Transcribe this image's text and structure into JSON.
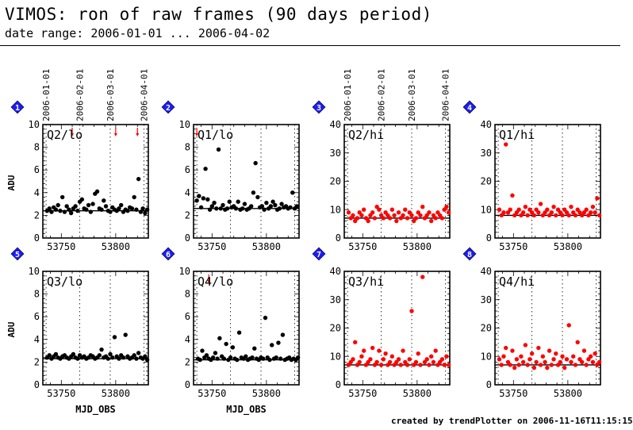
{
  "title": "VIMOS: ron of raw frames (90 days period)",
  "subtitle": "date range: 2006-01-01 ... 2006-04-02",
  "footer": "created by trendPlotter on 2006-11-16T11:15:15",
  "colors": {
    "lo": "#000000",
    "hi": "#ff0000",
    "badge": "#1c1cff",
    "background": "#ffffff"
  },
  "chart_data": {
    "type": "scatter",
    "shared_x_axis": {
      "label": "MJD_OBS",
      "ticks": [
        53750,
        53800
      ],
      "xlim": [
        53733,
        53830
      ],
      "date_markers": [
        {
          "label": "2006-01-01",
          "mjd": 53736
        },
        {
          "label": "2006-02-01",
          "mjd": 53767
        },
        {
          "label": "2006-03-01",
          "mjd": 53795
        },
        {
          "label": "2006-04-01",
          "mjd": 53826
        }
      ]
    },
    "ylabel": "ADU",
    "grid": "dotted vertical lines at month starts",
    "panels": [
      {
        "number": "1",
        "label": "Q2/lo",
        "color": "lo",
        "ylim": [
          0,
          10
        ],
        "yticks": [
          0,
          2,
          4,
          6,
          8,
          10
        ],
        "reference": 2.4,
        "x": [
          53737,
          53739,
          53741,
          53743,
          53745,
          53747,
          53749,
          53751,
          53753,
          53755,
          53757,
          53759,
          53761,
          53763,
          53765,
          53767,
          53769,
          53771,
          53773,
          53775,
          53777,
          53779,
          53781,
          53783,
          53785,
          53787,
          53789,
          53791,
          53793,
          53795,
          53797,
          53799,
          53801,
          53803,
          53805,
          53807,
          53809,
          53811,
          53813,
          53815,
          53817,
          53819,
          53821,
          53823,
          53825,
          53827,
          53829
        ],
        "y": [
          2.4,
          2.6,
          2.3,
          2.7,
          2.5,
          2.9,
          2.4,
          3.6,
          2.3,
          2.8,
          2.5,
          2.2,
          2.6,
          2.8,
          2.4,
          3.2,
          3.4,
          2.6,
          2.5,
          2.9,
          2.3,
          3.0,
          3.9,
          4.1,
          2.6,
          2.5,
          3.3,
          2.8,
          2.4,
          2.3,
          2.7,
          2.5,
          2.4,
          2.6,
          2.9,
          2.3,
          2.5,
          2.4,
          2.7,
          2.6,
          3.6,
          2.5,
          5.2,
          2.3,
          2.6,
          2.2,
          2.5
        ],
        "offscale_arrows": [
          53760,
          53800,
          53820
        ]
      },
      {
        "number": "2",
        "label": "Q1/lo",
        "color": "lo",
        "ylim": [
          0,
          10
        ],
        "yticks": [
          0,
          2,
          4,
          6,
          8,
          10
        ],
        "reference": 2.6,
        "x": [
          53736,
          53738,
          53740,
          53742,
          53744,
          53746,
          53748,
          53750,
          53752,
          53754,
          53756,
          53758,
          53760,
          53762,
          53764,
          53766,
          53768,
          53770,
          53772,
          53774,
          53776,
          53778,
          53780,
          53782,
          53784,
          53786,
          53788,
          53790,
          53792,
          53794,
          53796,
          53798,
          53800,
          53802,
          53804,
          53806,
          53808,
          53810,
          53812,
          53814,
          53816,
          53818,
          53820,
          53822,
          53824,
          53826,
          53828
        ],
        "y": [
          3.3,
          3.7,
          2.7,
          3.5,
          6.1,
          3.4,
          2.5,
          2.8,
          3.1,
          2.6,
          7.8,
          2.6,
          2.9,
          2.5,
          2.6,
          3.2,
          2.7,
          2.8,
          2.6,
          3.2,
          2.5,
          2.6,
          3.0,
          2.5,
          2.6,
          2.8,
          4.0,
          6.6,
          3.6,
          2.7,
          2.8,
          2.5,
          3.1,
          2.6,
          2.8,
          3.2,
          2.9,
          2.5,
          2.6,
          3.0,
          2.7,
          2.8,
          2.6,
          2.7,
          4.0,
          2.6,
          2.8
        ],
        "offscale_arrows": [
          53736
        ]
      },
      {
        "number": "3",
        "label": "Q2/hi",
        "color": "hi",
        "ylim": [
          0,
          40
        ],
        "yticks": [
          0,
          10,
          20,
          30,
          40
        ],
        "reference": 7,
        "x": [
          53737,
          53739,
          53741,
          53743,
          53745,
          53747,
          53749,
          53751,
          53753,
          53755,
          53757,
          53759,
          53761,
          53763,
          53765,
          53767,
          53769,
          53771,
          53773,
          53775,
          53777,
          53779,
          53781,
          53783,
          53785,
          53787,
          53789,
          53791,
          53793,
          53795,
          53797,
          53799,
          53801,
          53803,
          53805,
          53807,
          53809,
          53811,
          53813,
          53815,
          53817,
          53819,
          53821,
          53823,
          53825,
          53827,
          53829
        ],
        "y": [
          9,
          7,
          8,
          6,
          7,
          9,
          8,
          10,
          7,
          6,
          8,
          9,
          7,
          11,
          10,
          8,
          7,
          9,
          8,
          7,
          10,
          8,
          6,
          9,
          7,
          8,
          10,
          7,
          9,
          8,
          6,
          7,
          9,
          8,
          11,
          7,
          8,
          9,
          6,
          8,
          7,
          9,
          8,
          7,
          10,
          11,
          9
        ],
        "offscale_arrows": []
      },
      {
        "number": "4",
        "label": "Q1/hi",
        "color": "hi",
        "ylim": [
          0,
          40
        ],
        "yticks": [
          0,
          10,
          20,
          30,
          40
        ],
        "reference": 8,
        "x": [
          53737,
          53739,
          53741,
          53743,
          53745,
          53747,
          53749,
          53751,
          53753,
          53755,
          53757,
          53759,
          53761,
          53763,
          53765,
          53767,
          53769,
          53771,
          53773,
          53775,
          53777,
          53779,
          53781,
          53783,
          53785,
          53787,
          53789,
          53791,
          53793,
          53795,
          53797,
          53799,
          53801,
          53803,
          53805,
          53807,
          53809,
          53811,
          53813,
          53815,
          53817,
          53819,
          53821,
          53823,
          53825,
          53827,
          53829
        ],
        "y": [
          10,
          8,
          9,
          33,
          9,
          10,
          15,
          8,
          9,
          10,
          8,
          9,
          11,
          8,
          10,
          9,
          8,
          10,
          9,
          12,
          8,
          9,
          10,
          8,
          9,
          11,
          8,
          10,
          9,
          8,
          10,
          9,
          8,
          11,
          9,
          8,
          10,
          9,
          8,
          9,
          10,
          8,
          9,
          11,
          9,
          14,
          8
        ],
        "offscale_arrows": []
      },
      {
        "number": "5",
        "label": "Q3/lo",
        "color": "lo",
        "ylim": [
          0,
          10
        ],
        "yticks": [
          0,
          2,
          4,
          6,
          8,
          10
        ],
        "reference": 2.3,
        "x": [
          53737,
          53739,
          53741,
          53743,
          53745,
          53747,
          53749,
          53751,
          53753,
          53755,
          53757,
          53759,
          53761,
          53763,
          53765,
          53767,
          53769,
          53771,
          53773,
          53775,
          53777,
          53779,
          53781,
          53783,
          53785,
          53787,
          53789,
          53791,
          53793,
          53795,
          53797,
          53799,
          53801,
          53803,
          53805,
          53807,
          53809,
          53811,
          53813,
          53815,
          53817,
          53819,
          53821,
          53823,
          53825,
          53827,
          53829
        ],
        "y": [
          2.4,
          2.6,
          2.3,
          2.5,
          2.7,
          2.4,
          2.3,
          2.5,
          2.6,
          2.4,
          2.3,
          2.5,
          2.7,
          2.4,
          2.3,
          2.6,
          2.4,
          2.5,
          2.3,
          2.4,
          2.6,
          2.5,
          2.3,
          2.4,
          2.6,
          3.1,
          2.4,
          2.5,
          2.3,
          2.7,
          2.4,
          4.2,
          2.5,
          2.3,
          2.6,
          2.4,
          4.4,
          2.5,
          2.3,
          2.4,
          2.6,
          2.3,
          2.8,
          2.4,
          2.3,
          2.5,
          2.2
        ],
        "offscale_arrows": []
      },
      {
        "number": "6",
        "label": "Q4/lo",
        "color": "lo",
        "ylim": [
          0,
          10
        ],
        "yticks": [
          0,
          2,
          4,
          6,
          8,
          10
        ],
        "reference": 2.2,
        "x": [
          53737,
          53739,
          53741,
          53743,
          53745,
          53747,
          53749,
          53751,
          53753,
          53755,
          53757,
          53759,
          53761,
          53763,
          53765,
          53767,
          53769,
          53771,
          53773,
          53775,
          53777,
          53779,
          53781,
          53783,
          53785,
          53787,
          53789,
          53791,
          53793,
          53795,
          53797,
          53799,
          53801,
          53803,
          53805,
          53807,
          53809,
          53811,
          53813,
          53815,
          53817,
          53819,
          53821,
          53823,
          53825,
          53827,
          53829
        ],
        "y": [
          2.3,
          2.2,
          3.0,
          2.4,
          2.6,
          2.3,
          2.2,
          2.4,
          2.8,
          2.3,
          4.1,
          2.5,
          2.3,
          3.6,
          2.2,
          2.4,
          3.3,
          2.3,
          2.2,
          4.6,
          2.4,
          2.3,
          2.5,
          2.2,
          2.3,
          2.4,
          3.2,
          2.3,
          2.2,
          2.4,
          2.3,
          5.9,
          2.4,
          2.2,
          3.5,
          2.3,
          2.4,
          3.7,
          2.3,
          4.4,
          2.2,
          2.3,
          2.4,
          2.2,
          2.3,
          2.2,
          2.4
        ],
        "offscale_arrows": [
          53747
        ]
      },
      {
        "number": "7",
        "label": "Q3/hi",
        "color": "hi",
        "ylim": [
          0,
          40
        ],
        "yticks": [
          0,
          10,
          20,
          30,
          40
        ],
        "reference": 7,
        "x": [
          53737,
          53739,
          53741,
          53743,
          53745,
          53747,
          53749,
          53751,
          53753,
          53755,
          53757,
          53759,
          53761,
          53763,
          53765,
          53767,
          53769,
          53771,
          53773,
          53775,
          53777,
          53779,
          53781,
          53783,
          53785,
          53787,
          53789,
          53791,
          53793,
          53795,
          53797,
          53799,
          53801,
          53803,
          53805,
          53807,
          53809,
          53811,
          53813,
          53815,
          53817,
          53819,
          53821,
          53823,
          53825,
          53827,
          53829
        ],
        "y": [
          7,
          8,
          9,
          15,
          7,
          8,
          10,
          12,
          7,
          8,
          9,
          13,
          7,
          8,
          12,
          7,
          9,
          11,
          7,
          8,
          10,
          7,
          8,
          9,
          7,
          12,
          8,
          7,
          9,
          26,
          7,
          8,
          11,
          7,
          38,
          8,
          9,
          7,
          10,
          8,
          12,
          7,
          8,
          9,
          7,
          10,
          7
        ],
        "offscale_arrows": []
      },
      {
        "number": "8",
        "label": "Q4/hi",
        "color": "hi",
        "ylim": [
          0,
          40
        ],
        "yticks": [
          0,
          10,
          20,
          30,
          40
        ],
        "reference": 7,
        "x": [
          53737,
          53739,
          53741,
          53743,
          53745,
          53747,
          53749,
          53751,
          53753,
          53755,
          53757,
          53759,
          53761,
          53763,
          53765,
          53767,
          53769,
          53771,
          53773,
          53775,
          53777,
          53779,
          53781,
          53783,
          53785,
          53787,
          53789,
          53791,
          53793,
          53795,
          53797,
          53799,
          53801,
          53803,
          53805,
          53807,
          53809,
          53811,
          53813,
          53815,
          53817,
          53819,
          53821,
          53823,
          53825,
          53827,
          53829
        ],
        "y": [
          9,
          7,
          10,
          13,
          8,
          7,
          12,
          6,
          9,
          7,
          10,
          8,
          14,
          7,
          9,
          11,
          6,
          8,
          13,
          7,
          10,
          8,
          6,
          12,
          7,
          9,
          11,
          7,
          8,
          10,
          6,
          9,
          21,
          8,
          10,
          7,
          15,
          9,
          8,
          12,
          7,
          9,
          10,
          8,
          11,
          7,
          8
        ],
        "offscale_arrows": []
      }
    ]
  }
}
